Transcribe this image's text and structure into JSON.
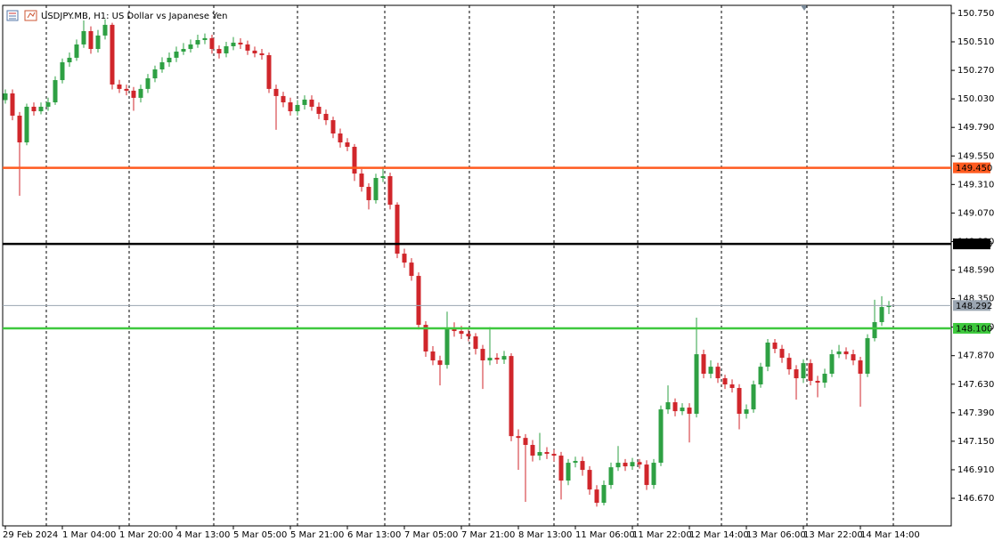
{
  "chart_data": {
    "type": "candlestick",
    "title": "USDJPY.MB, H1:  US Dollar vs Japanese Yen",
    "categories": [
      "29 Feb 2024",
      null,
      null,
      null,
      null,
      null,
      null,
      null,
      "1 Mar 04:00",
      null,
      null,
      null,
      null,
      null,
      null,
      null,
      "1 Mar 20:00",
      null,
      null,
      null,
      null,
      null,
      null,
      null,
      "4 Mar 13:00",
      null,
      null,
      null,
      null,
      null,
      null,
      null,
      "5 Mar 05:00",
      null,
      null,
      null,
      null,
      null,
      null,
      null,
      "5 Mar 21:00",
      null,
      null,
      null,
      null,
      null,
      null,
      null,
      "6 Mar 13:00",
      null,
      null,
      null,
      null,
      null,
      null,
      null,
      "7 Mar 05:00",
      null,
      null,
      null,
      null,
      null,
      null,
      null,
      "7 Mar 21:00",
      null,
      null,
      null,
      null,
      null,
      null,
      null,
      "8 Mar 13:00",
      null,
      null,
      null,
      null,
      null,
      null,
      null,
      "11 Mar 06:00",
      null,
      null,
      null,
      null,
      null,
      null,
      null,
      "11 Mar 22:00",
      null,
      null,
      null,
      null,
      null,
      null,
      null,
      "12 Mar 14:00",
      null,
      null,
      null,
      null,
      null,
      null,
      null,
      "13 Mar 06:00",
      null,
      null,
      null,
      null,
      null,
      null,
      null,
      "13 Mar 22:00",
      null,
      null,
      null,
      null,
      null,
      null,
      null,
      "14 Mar 14:00",
      null,
      null,
      null,
      null
    ],
    "open": [
      150.02,
      150.076,
      149.889,
      149.664,
      149.964,
      149.926,
      149.964,
      150.001,
      150.188,
      150.338,
      150.376,
      150.488,
      150.6,
      150.45,
      150.563,
      150.653,
      150.151,
      150.114,
      150.099,
      150.039,
      150.114,
      150.203,
      150.278,
      150.338,
      150.376,
      150.428,
      150.45,
      150.488,
      150.525,
      150.541,
      150.45,
      150.413,
      150.473,
      150.503,
      150.488,
      150.436,
      150.413,
      150.398,
      150.114,
      150.054,
      150.001,
      149.926,
      149.979,
      150.024,
      149.964,
      149.904,
      149.851,
      149.739,
      149.664,
      149.627,
      149.402,
      149.29,
      149.178,
      149.365,
      149.38,
      149.14,
      148.728,
      148.653,
      148.541,
      148.129,
      147.905,
      147.83,
      147.792,
      148.107,
      148.077,
      148.054,
      148.032,
      147.927,
      147.83,
      147.852,
      147.837,
      147.867,
      147.193,
      147.178,
      147.119,
      147.029,
      147.059,
      147.044,
      147.029,
      146.819,
      146.969,
      146.984,
      146.909,
      146.744,
      146.632,
      146.782,
      146.931,
      146.969,
      146.939,
      146.975,
      146.954,
      146.782,
      146.969,
      147.418,
      147.478,
      147.403,
      147.433,
      147.381,
      147.882,
      147.718,
      147.777,
      147.68,
      147.628,
      147.598,
      147.381,
      147.418,
      147.628,
      147.777,
      147.98,
      147.927,
      147.852,
      147.755,
      147.68,
      147.807,
      147.658,
      147.643,
      147.718,
      147.882,
      147.905,
      147.882,
      147.83,
      147.718,
      148.017,
      148.152,
      148.279
    ],
    "high": [
      150.11,
      150.11,
      149.92,
      149.99,
      150.0,
      150.0,
      150.04,
      150.22,
      150.37,
      150.42,
      150.53,
      150.69,
      150.64,
      150.61,
      150.7,
      150.67,
      150.19,
      150.15,
      150.13,
      150.15,
      150.24,
      150.31,
      150.38,
      150.42,
      150.47,
      150.5,
      150.53,
      150.57,
      150.58,
      150.57,
      150.48,
      150.51,
      150.55,
      150.54,
      150.52,
      150.47,
      150.45,
      150.42,
      150.15,
      150.09,
      150.04,
      150.02,
      150.06,
      150.06,
      150.0,
      149.94,
      149.88,
      149.78,
      149.7,
      149.65,
      149.44,
      149.32,
      149.4,
      149.46,
      149.41,
      149.16,
      148.77,
      148.69,
      148.57,
      148.16,
      147.95,
      147.87,
      148.24,
      148.15,
      148.12,
      148.09,
      148.06,
      147.96,
      148.11,
      147.89,
      147.91,
      147.89,
      147.25,
      147.21,
      147.16,
      147.22,
      147.1,
      147.08,
      147.06,
      147.0,
      147.02,
      147.02,
      146.94,
      146.78,
      146.82,
      146.97,
      147.11,
      147.0,
      147.01,
      147.0,
      146.99,
      147.0,
      147.45,
      147.62,
      147.51,
      147.47,
      147.47,
      148.19,
      147.92,
      147.83,
      147.81,
      147.71,
      147.67,
      147.63,
      147.46,
      147.66,
      147.81,
      148.01,
      148.01,
      147.96,
      147.89,
      147.79,
      147.84,
      147.84,
      147.7,
      147.76,
      147.92,
      147.96,
      147.94,
      147.92,
      147.86,
      148.05,
      148.34,
      148.37,
      148.33
    ],
    "low": [
      149.99,
      149.85,
      149.215,
      149.64,
      149.89,
      149.9,
      149.93,
      149.98,
      150.16,
      150.3,
      150.35,
      150.46,
      150.41,
      150.42,
      150.53,
      150.11,
      150.08,
      150.06,
      149.93,
      150.0,
      150.08,
      150.17,
      150.25,
      150.3,
      150.34,
      150.4,
      150.42,
      150.46,
      150.49,
      150.41,
      150.37,
      150.38,
      150.44,
      150.45,
      150.4,
      150.38,
      150.36,
      150.08,
      149.77,
      149.96,
      149.89,
      149.89,
      149.94,
      149.93,
      149.86,
      149.81,
      149.7,
      149.62,
      149.59,
      149.34,
      149.25,
      149.1,
      149.15,
      149.33,
      149.1,
      148.69,
      148.61,
      148.5,
      148.09,
      147.86,
      147.79,
      147.62,
      147.76,
      148.03,
      148.01,
      147.99,
      147.88,
      147.59,
      147.79,
      147.8,
      147.8,
      147.15,
      146.91,
      146.64,
      146.98,
      146.99,
      147.0,
      146.98,
      146.66,
      146.78,
      146.93,
      146.86,
      146.7,
      146.6,
      146.61,
      146.75,
      146.9,
      146.9,
      146.91,
      146.92,
      146.74,
      146.75,
      146.94,
      147.38,
      147.36,
      147.37,
      147.14,
      147.35,
      147.68,
      147.68,
      147.64,
      147.59,
      147.56,
      147.25,
      147.34,
      147.39,
      147.6,
      147.74,
      147.89,
      147.81,
      147.71,
      147.5,
      147.64,
      147.62,
      147.52,
      147.6,
      147.69,
      147.85,
      147.84,
      147.79,
      147.44,
      147.69,
      147.99,
      148.12,
      148.22
    ],
    "close": [
      150.076,
      149.889,
      149.664,
      149.964,
      149.926,
      149.964,
      150.001,
      150.188,
      150.338,
      150.376,
      150.488,
      150.6,
      150.45,
      150.563,
      150.653,
      150.151,
      150.114,
      150.099,
      150.039,
      150.114,
      150.203,
      150.278,
      150.338,
      150.376,
      150.428,
      150.45,
      150.488,
      150.525,
      150.541,
      150.45,
      150.413,
      150.473,
      150.503,
      150.488,
      150.436,
      150.413,
      150.398,
      150.114,
      150.054,
      150.001,
      149.926,
      149.979,
      150.024,
      149.964,
      149.904,
      149.851,
      149.739,
      149.664,
      149.627,
      149.402,
      149.29,
      149.178,
      149.365,
      149.38,
      149.14,
      148.728,
      148.653,
      148.541,
      148.129,
      147.905,
      147.83,
      147.792,
      148.107,
      148.077,
      148.054,
      148.032,
      147.927,
      147.83,
      147.852,
      147.837,
      147.867,
      147.193,
      147.178,
      147.119,
      147.029,
      147.059,
      147.044,
      147.029,
      146.819,
      146.969,
      146.984,
      146.909,
      146.744,
      146.632,
      146.782,
      146.931,
      146.969,
      146.939,
      146.975,
      146.954,
      146.782,
      146.969,
      147.418,
      147.478,
      147.403,
      147.433,
      147.381,
      147.882,
      147.718,
      147.777,
      147.68,
      147.628,
      147.598,
      147.381,
      147.418,
      147.628,
      147.777,
      147.98,
      147.927,
      147.852,
      147.755,
      147.68,
      147.807,
      147.658,
      147.643,
      147.718,
      147.882,
      147.905,
      147.882,
      147.83,
      147.718,
      148.017,
      148.152,
      148.279,
      148.292
    ],
    "up_color": "#2ea043",
    "down_color": "#d0262b",
    "ylim": [
      146.438,
      150.817
    ],
    "yticks": [
      {
        "value": 150.75,
        "label": "150.750"
      },
      {
        "value": 150.51,
        "label": "150.510"
      },
      {
        "value": 150.27,
        "label": "150.270"
      },
      {
        "value": 150.03,
        "label": "150.030"
      },
      {
        "value": 149.79,
        "label": "149.790"
      },
      {
        "value": 149.55,
        "label": "149.550"
      },
      {
        "value": 149.31,
        "label": "149.310"
      },
      {
        "value": 149.07,
        "label": "149.070"
      },
      {
        "value": 148.83,
        "label": "148.830"
      },
      {
        "value": 148.59,
        "label": "148.590"
      },
      {
        "value": 148.35,
        "label": "148.350"
      },
      {
        "value": 148.11,
        "label": "148.110"
      },
      {
        "value": 147.87,
        "label": "147.870"
      },
      {
        "value": 147.63,
        "label": "147.630"
      },
      {
        "value": 147.39,
        "label": "147.390"
      },
      {
        "value": 147.15,
        "label": "147.150"
      },
      {
        "value": 146.91,
        "label": "146.910"
      },
      {
        "value": 146.67,
        "label": "146.670"
      }
    ],
    "levels": [
      {
        "value": 149.45,
        "label": "149.450",
        "color": "#ff5a1f"
      },
      {
        "value": 148.81,
        "label": "148.810",
        "color": "#000000"
      },
      {
        "value": 148.292,
        "label": "148.292",
        "color": "#9aa5b1"
      },
      {
        "value": 148.1,
        "label": "148.100",
        "color": "#3ec83e"
      }
    ]
  }
}
